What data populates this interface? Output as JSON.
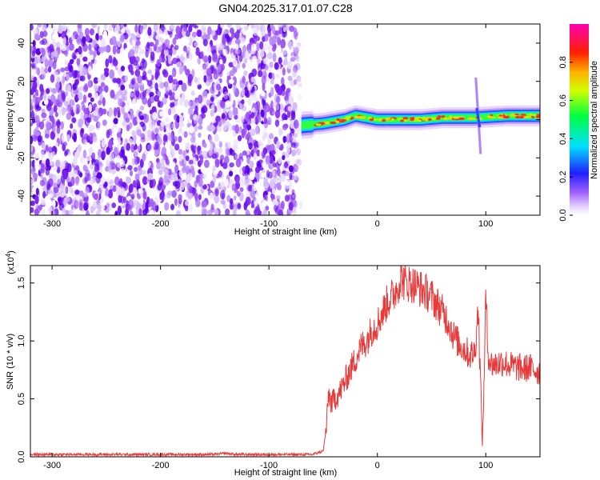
{
  "title": "GN04.2025.317.01.07.C28",
  "chart_data": [
    {
      "type": "heatmap",
      "xlabel": "Height of straight line (km)",
      "ylabel": "Frequency (Hz)",
      "xlim": [
        -320,
        150
      ],
      "ylim": [
        -50,
        50
      ],
      "x_ticks": [
        -300,
        -200,
        -100,
        0,
        100
      ],
      "x_tick_labels": [
        "-300",
        "-200",
        "-100",
        "0",
        "100"
      ],
      "y_ticks": [
        -40,
        -20,
        0,
        20,
        40
      ],
      "y_tick_labels": [
        "-40",
        "-20",
        "0",
        "20",
        "40"
      ],
      "colorbar": {
        "label": "Normalized spectral amplitude",
        "range": [
          0,
          1
        ],
        "ticks": [
          0.0,
          0.2,
          0.4,
          0.6,
          0.8
        ],
        "tick_labels": [
          "0.0",
          "0.2",
          "0.4",
          "0.6",
          "0.8"
        ],
        "colors": [
          "#ffffff",
          "#e0c8ff",
          "#8a2be2",
          "#0000ff",
          "#00ffff",
          "#00ff00",
          "#ffff00",
          "#ff8000",
          "#ff0000",
          "#ff00ff"
        ]
      },
      "noise_region_x": [
        -320,
        -70
      ],
      "signal_band": {
        "x_start": -70,
        "center_points": [
          [
            -70,
            -3
          ],
          [
            -50,
            -2
          ],
          [
            -30,
            0
          ],
          [
            -20,
            2
          ],
          [
            0,
            0
          ],
          [
            20,
            0
          ],
          [
            40,
            0
          ],
          [
            60,
            1
          ],
          [
            90,
            1
          ],
          [
            120,
            2
          ],
          [
            150,
            2
          ]
        ]
      },
      "spike": {
        "x": 93,
        "f_range": [
          -18,
          22
        ]
      }
    },
    {
      "type": "line",
      "xlabel": "Height of straight line (km)",
      "ylabel": "SNR (10 * v/v)",
      "y_multiplier": "(x10",
      "y_multiplier_exp": "4",
      "y_multiplier_close": ")",
      "xlim": [
        -320,
        150
      ],
      "ylim": [
        0,
        1.65
      ],
      "x_ticks": [
        -300,
        -200,
        -100,
        0,
        100
      ],
      "x_tick_labels": [
        "-300",
        "-200",
        "-100",
        "0",
        "100"
      ],
      "y_ticks": [
        0.0,
        0.5,
        1.0,
        1.5
      ],
      "y_tick_labels": [
        "0.0",
        "0.5",
        "1.0",
        "1.5"
      ],
      "series": [
        {
          "color": "#e83a3a",
          "x": [
            -320,
            -150,
            -140,
            -130,
            -60,
            -50,
            -47,
            -45,
            -42,
            -40,
            -35,
            -30,
            -25,
            -20,
            -15,
            -10,
            -5,
            0,
            5,
            10,
            15,
            20,
            22,
            25,
            30,
            35,
            40,
            45,
            50,
            55,
            60,
            65,
            70,
            75,
            80,
            85,
            90,
            93,
            95,
            97,
            98,
            100,
            102,
            105,
            110,
            115,
            120,
            125,
            130,
            135,
            140,
            145,
            150
          ],
          "y": [
            0.02,
            0.02,
            0.03,
            0.02,
            0.02,
            0.05,
            0.25,
            0.55,
            0.45,
            0.5,
            0.55,
            0.65,
            0.75,
            0.85,
            0.95,
            1.0,
            1.1,
            1.15,
            1.25,
            1.35,
            1.4,
            1.5,
            1.55,
            1.5,
            1.5,
            1.48,
            1.45,
            1.42,
            1.38,
            1.32,
            1.25,
            1.18,
            1.05,
            0.98,
            0.93,
            0.88,
            0.9,
            1.3,
            0.7,
            0.1,
            0.5,
            1.4,
            0.9,
            0.8,
            0.8,
            0.82,
            0.8,
            0.78,
            0.77,
            0.76,
            0.77,
            0.75,
            0.73
          ]
        }
      ]
    }
  ]
}
